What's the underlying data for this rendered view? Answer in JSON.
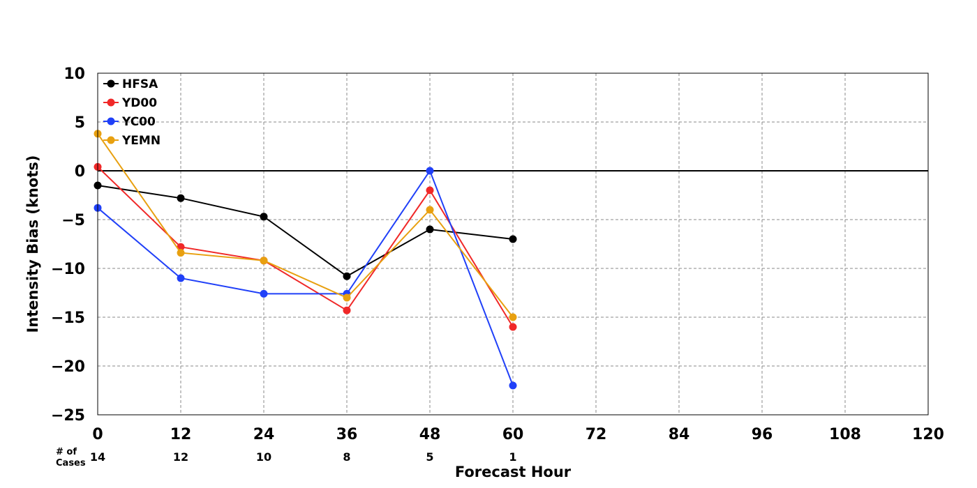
{
  "chart_data": {
    "type": "line",
    "title": "",
    "xlabel": "Forecast Hour",
    "ylabel": "Intensity Bias (knots)",
    "xlim": [
      0,
      120
    ],
    "ylim": [
      -25,
      10
    ],
    "x_ticks": [
      "0",
      "12",
      "24",
      "36",
      "48",
      "60",
      "72",
      "84",
      "96",
      "108",
      "120"
    ],
    "y_ticks": [
      "10",
      "5",
      "0",
      "−5",
      "−10",
      "−15",
      "−20",
      "−25"
    ],
    "grid": true,
    "legend_position": "top-left",
    "zero_line": true,
    "cases_label_line1": "# of",
    "cases_label_line2": "Cases",
    "cases": [
      {
        "x": 0,
        "n": "14"
      },
      {
        "x": 12,
        "n": "12"
      },
      {
        "x": 24,
        "n": "10"
      },
      {
        "x": 36,
        "n": "8"
      },
      {
        "x": 48,
        "n": "5"
      },
      {
        "x": 60,
        "n": "1"
      }
    ],
    "x": [
      0,
      12,
      24,
      36,
      48,
      60
    ],
    "series": [
      {
        "name": "HFSA",
        "color": "#000000",
        "values": [
          -1.5,
          -2.8,
          -4.7,
          -10.8,
          -6.0,
          -7.0
        ]
      },
      {
        "name": "YD00",
        "color": "#f02828",
        "values": [
          0.4,
          -7.8,
          -9.2,
          -14.3,
          -2.0,
          -16.0
        ]
      },
      {
        "name": "YC00",
        "color": "#2040f8",
        "values": [
          -3.8,
          -11.0,
          -12.6,
          -12.6,
          0.0,
          -22.0
        ]
      },
      {
        "name": "YEMN",
        "color": "#e8a010",
        "values": [
          3.8,
          -8.4,
          -9.2,
          -13.0,
          -4.0,
          -15.0
        ]
      }
    ]
  }
}
